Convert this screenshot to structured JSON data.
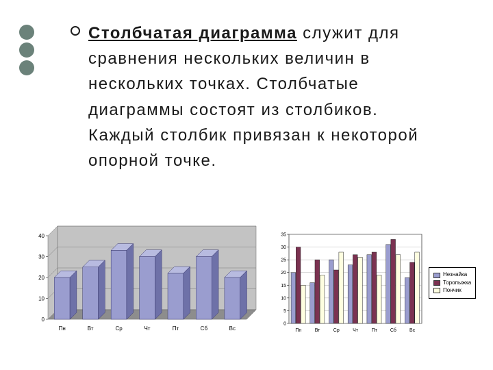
{
  "text": {
    "term": "Столбчатая диаграмма",
    "rest": " служит для сравнения нескольких величин в нескольких точках. Столбчатые диаграммы состоят из столбиков. Каждый столбик привязан к некоторой опорной точке."
  },
  "chart1": {
    "type": "bar-3d",
    "categories": [
      "Пн",
      "Вт",
      "Ср",
      "Чт",
      "Пт",
      "Сб",
      "Вс"
    ],
    "values": [
      20,
      25,
      33,
      30,
      22,
      30,
      20
    ],
    "yticks": [
      0,
      10,
      20,
      30,
      40
    ],
    "ylim": [
      0,
      40
    ],
    "bar_color": "#9a9dcf",
    "bar_top": "#b8bbe0",
    "bar_side": "#6e71a8",
    "wall_color": "#c3c3c3",
    "floor_color": "#8d8d8d",
    "grid_color": "#7a7a7a",
    "axis_fontsize": 8
  },
  "chart2": {
    "type": "bar-grouped",
    "categories": [
      "Пн",
      "Вт",
      "Ср",
      "Чт",
      "Пт",
      "Сб",
      "Вс"
    ],
    "series": [
      {
        "name": "Незнайка",
        "color": "#9a9dcf",
        "values": [
          20,
          16,
          25,
          23,
          27,
          31,
          18
        ]
      },
      {
        "name": "Торопыжка",
        "color": "#7b3251",
        "values": [
          30,
          25,
          21,
          27,
          28,
          33,
          24
        ]
      },
      {
        "name": "Пончик",
        "color": "#fefee0",
        "values": [
          15,
          19,
          28,
          26,
          19,
          27,
          28
        ]
      }
    ],
    "yticks": [
      0,
      5,
      10,
      15,
      20,
      25,
      30,
      35
    ],
    "ylim": [
      0,
      35
    ],
    "grid_color": "#9e9e9e",
    "axis_fontsize": 7,
    "background": "#ffffff"
  }
}
